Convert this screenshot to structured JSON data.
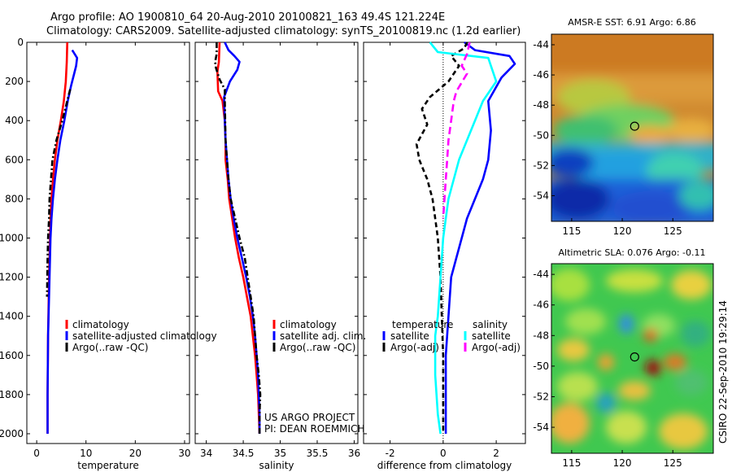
{
  "header": {
    "line1": "Argo profile: AO 1900810_64 20-Aug-2010 20100821_163 49.4S 121.224E",
    "line2": "Climatology: CARS2009. Satellite-adjusted climatology: synTS_20100819.nc (1.2d earlier)"
  },
  "credits": {
    "project": "US ARGO PROJECT",
    "pi": "PI: DEAN ROEMMICH",
    "stamp": "CSIRO 22-Sep-2010 19:29:14"
  },
  "colors": {
    "climatology": "#ff0000",
    "satellite": "#0000ff",
    "argo": "#000000",
    "cyan": "#00ffff",
    "magenta": "#ff00ff"
  },
  "chart_data": [
    {
      "type": "line",
      "xlabel": "temperature",
      "ylabel": "",
      "xlim": [
        -2,
        31
      ],
      "ylim": [
        2050,
        0
      ],
      "xticks": [
        0,
        10,
        20,
        30
      ],
      "yticks": [
        0,
        200,
        400,
        600,
        800,
        1000,
        1200,
        1400,
        1600,
        1800,
        2000
      ],
      "legend": [
        "climatology",
        "satellite-adjusted climatology",
        "Argo(..raw -QC)"
      ],
      "series": [
        {
          "name": "climatology",
          "color": "#ff0000",
          "dash": "",
          "points": [
            [
              6.2,
              0
            ],
            [
              6.1,
              100
            ],
            [
              5.9,
              200
            ],
            [
              5.5,
              300
            ],
            [
              4.9,
              400
            ],
            [
              4.2,
              500
            ],
            [
              3.7,
              600
            ],
            [
              3.3,
              700
            ],
            [
              3.0,
              800
            ],
            [
              2.8,
              900
            ],
            [
              2.7,
              1000
            ],
            [
              2.5,
              1200
            ],
            [
              2.3,
              1500
            ],
            [
              2.2,
              1800
            ],
            [
              2.2,
              2000
            ]
          ]
        },
        {
          "name": "satellite-adjusted climatology",
          "color": "#0000ff",
          "dash": "",
          "points": [
            [
              7.2,
              40
            ],
            [
              8.2,
              80
            ],
            [
              8.0,
              120
            ],
            [
              7.6,
              160
            ],
            [
              7.0,
              220
            ],
            [
              6.3,
              300
            ],
            [
              5.6,
              400
            ],
            [
              4.8,
              500
            ],
            [
              4.2,
              600
            ],
            [
              3.7,
              700
            ],
            [
              3.3,
              800
            ],
            [
              3.0,
              900
            ],
            [
              2.8,
              1000
            ],
            [
              2.6,
              1200
            ],
            [
              2.3,
              1500
            ],
            [
              2.2,
              1800
            ],
            [
              2.2,
              2000
            ]
          ]
        },
        {
          "name": "Argo(..raw -QC)",
          "color": "#000000",
          "dash": "7 3 2 3",
          "points": [
            [
              6.8,
              240
            ],
            [
              6.2,
              300
            ],
            [
              5.2,
              400
            ],
            [
              4.0,
              500
            ],
            [
              3.2,
              600
            ],
            [
              2.9,
              700
            ],
            [
              2.6,
              800
            ],
            [
              2.5,
              900
            ],
            [
              2.3,
              1000
            ],
            [
              2.2,
              1100
            ],
            [
              2.1,
              1300
            ]
          ]
        }
      ]
    },
    {
      "type": "line",
      "xlabel": "salinity",
      "ylabel": "",
      "xlim": [
        33.85,
        36.05
      ],
      "ylim": [
        2050,
        0
      ],
      "xticks": [
        34,
        34.5,
        35,
        35.5,
        36
      ],
      "yticks": [
        0,
        200,
        400,
        600,
        800,
        1000,
        1200,
        1400,
        1600,
        1800,
        2000
      ],
      "legend": [
        "climatology",
        "satellite adj. clim.",
        "Argo(..raw -QC)"
      ],
      "series": [
        {
          "name": "climatology",
          "color": "#ff0000",
          "dash": "",
          "points": [
            [
              34.18,
              0
            ],
            [
              34.17,
              100
            ],
            [
              34.15,
              150
            ],
            [
              34.16,
              250
            ],
            [
              34.22,
              300
            ],
            [
              34.25,
              400
            ],
            [
              34.26,
              500
            ],
            [
              34.26,
              600
            ],
            [
              34.29,
              700
            ],
            [
              34.31,
              800
            ],
            [
              34.35,
              900
            ],
            [
              34.39,
              1000
            ],
            [
              34.44,
              1100
            ],
            [
              34.5,
              1200
            ],
            [
              34.55,
              1300
            ],
            [
              34.6,
              1400
            ],
            [
              34.63,
              1500
            ],
            [
              34.66,
              1600
            ],
            [
              34.68,
              1700
            ],
            [
              34.7,
              1800
            ],
            [
              34.71,
              1900
            ],
            [
              34.72,
              2000
            ]
          ]
        },
        {
          "name": "satellite adj. clim.",
          "color": "#0000ff",
          "dash": "",
          "points": [
            [
              34.25,
              0
            ],
            [
              34.3,
              40
            ],
            [
              34.38,
              70
            ],
            [
              34.45,
              100
            ],
            [
              34.42,
              140
            ],
            [
              34.32,
              200
            ],
            [
              34.24,
              280
            ],
            [
              34.25,
              400
            ],
            [
              34.26,
              500
            ],
            [
              34.28,
              600
            ],
            [
              34.3,
              700
            ],
            [
              34.33,
              800
            ],
            [
              34.37,
              900
            ],
            [
              34.42,
              1000
            ],
            [
              34.48,
              1100
            ],
            [
              34.54,
              1200
            ],
            [
              34.59,
              1300
            ],
            [
              34.63,
              1400
            ],
            [
              34.66,
              1500
            ],
            [
              34.68,
              1600
            ],
            [
              34.7,
              1700
            ],
            [
              34.71,
              1800
            ],
            [
              34.72,
              1900
            ],
            [
              34.72,
              2000
            ]
          ]
        },
        {
          "name": "Argo(..raw -QC)",
          "color": "#000000",
          "dash": "7 3 2 3",
          "points": [
            [
              34.14,
              0
            ],
            [
              34.14,
              60
            ],
            [
              34.12,
              100
            ],
            [
              34.13,
              130
            ],
            [
              34.18,
              190
            ],
            [
              34.25,
              240
            ],
            [
              34.25,
              300
            ],
            [
              34.26,
              500
            ],
            [
              34.28,
              600
            ],
            [
              34.3,
              700
            ],
            [
              34.33,
              800
            ],
            [
              34.39,
              900
            ],
            [
              34.45,
              1000
            ],
            [
              34.52,
              1100
            ],
            [
              34.56,
              1200
            ],
            [
              34.6,
              1300
            ],
            [
              34.64,
              1400
            ],
            [
              34.66,
              1500
            ],
            [
              34.68,
              1600
            ],
            [
              34.71,
              1700
            ],
            [
              34.73,
              1800
            ],
            [
              34.72,
              1900
            ],
            [
              34.72,
              2000
            ]
          ]
        }
      ]
    },
    {
      "type": "line",
      "xlabel": "difference from climatology",
      "ylabel": "",
      "xlim": [
        -3,
        3.1
      ],
      "ylim": [
        2050,
        0
      ],
      "xticks": [
        -2,
        0,
        2
      ],
      "yticks": [
        0,
        200,
        400,
        600,
        800,
        1000,
        1200,
        1400,
        1600,
        1800,
        2000
      ],
      "legend_headers": [
        "temperature",
        "salinity"
      ],
      "legend": [
        "satellite",
        "Argo(-adj)",
        "satellite",
        "Argo(-adj)"
      ],
      "series": [
        {
          "name": "satellite",
          "color": "#0000ff",
          "dash": "",
          "points": [
            [
              0.8,
              0
            ],
            [
              1.2,
              40
            ],
            [
              2.5,
              70
            ],
            [
              2.7,
              110
            ],
            [
              2.2,
              180
            ],
            [
              1.7,
              300
            ],
            [
              1.8,
              450
            ],
            [
              1.7,
              600
            ],
            [
              1.5,
              700
            ],
            [
              1.2,
              800
            ],
            [
              0.9,
              900
            ],
            [
              0.7,
              1000
            ],
            [
              0.5,
              1100
            ],
            [
              0.3,
              1200
            ],
            [
              0.2,
              1400
            ],
            [
              0.1,
              1600
            ],
            [
              0.1,
              1800
            ],
            [
              0.1,
              2000
            ]
          ]
        },
        {
          "name": "Argo(-adj)",
          "color": "#000000",
          "dash": "6 4",
          "points": [
            [
              0.9,
              0
            ],
            [
              0.8,
              30
            ],
            [
              0.3,
              70
            ],
            [
              0.6,
              120
            ],
            [
              0.2,
              200
            ],
            [
              -0.5,
              280
            ],
            [
              -0.8,
              340
            ],
            [
              -0.6,
              420
            ],
            [
              -1.0,
              520
            ],
            [
              -0.9,
              600
            ],
            [
              -0.6,
              700
            ],
            [
              -0.4,
              800
            ],
            [
              -0.3,
              900
            ],
            [
              -0.2,
              1000
            ],
            [
              -0.1,
              1200
            ],
            [
              -0.05,
              1400
            ],
            [
              0,
              1600
            ],
            [
              0,
              1800
            ],
            [
              0,
              2000
            ]
          ]
        },
        {
          "name": "satellite",
          "color": "#00ffff",
          "dash": "",
          "points": [
            [
              -0.5,
              0
            ],
            [
              -0.2,
              50
            ],
            [
              1.7,
              80
            ],
            [
              2.0,
              200
            ],
            [
              1.5,
              300
            ],
            [
              1.2,
              400
            ],
            [
              0.9,
              500
            ],
            [
              0.6,
              600
            ],
            [
              0.4,
              700
            ],
            [
              0.2,
              800
            ],
            [
              0.1,
              900
            ],
            [
              0,
              1000
            ],
            [
              -0.1,
              1200
            ],
            [
              -0.2,
              1400
            ],
            [
              -0.3,
              1500
            ],
            [
              -0.3,
              1700
            ],
            [
              -0.2,
              1900
            ],
            [
              -0.1,
              2000
            ]
          ]
        },
        {
          "name": "Argo(-adj)",
          "color": "#ff00ff",
          "dash": "9 5",
          "points": [
            [
              1.0,
              0
            ],
            [
              0.9,
              60
            ],
            [
              0.7,
              120
            ],
            [
              0.9,
              160
            ],
            [
              0.5,
              250
            ],
            [
              0.4,
              300
            ],
            [
              0.3,
              400
            ],
            [
              0.2,
              500
            ],
            [
              0.15,
              600
            ],
            [
              0.1,
              700
            ],
            [
              0.05,
              800
            ],
            [
              0,
              900
            ]
          ]
        }
      ]
    },
    {
      "type": "heatmap",
      "title": "AMSR-E SST: 6.91  Argo: 6.86",
      "xlim": [
        113,
        129
      ],
      "ylim": [
        -55.7,
        -43.3
      ],
      "xticks": [
        115,
        120,
        125
      ],
      "yticks": [
        -44,
        -46,
        -48,
        -50,
        -52,
        -54
      ],
      "marker": [
        121.224,
        -49.4
      ]
    },
    {
      "type": "heatmap",
      "title": "Altimetric SLA: 0.076  Argo: -0.11",
      "xlim": [
        113,
        129
      ],
      "ylim": [
        -55.7,
        -43.3
      ],
      "xticks": [
        115,
        120,
        125
      ],
      "yticks": [
        -44,
        -46,
        -48,
        -50,
        -52,
        -54
      ],
      "marker": [
        121.224,
        -49.4
      ]
    }
  ]
}
